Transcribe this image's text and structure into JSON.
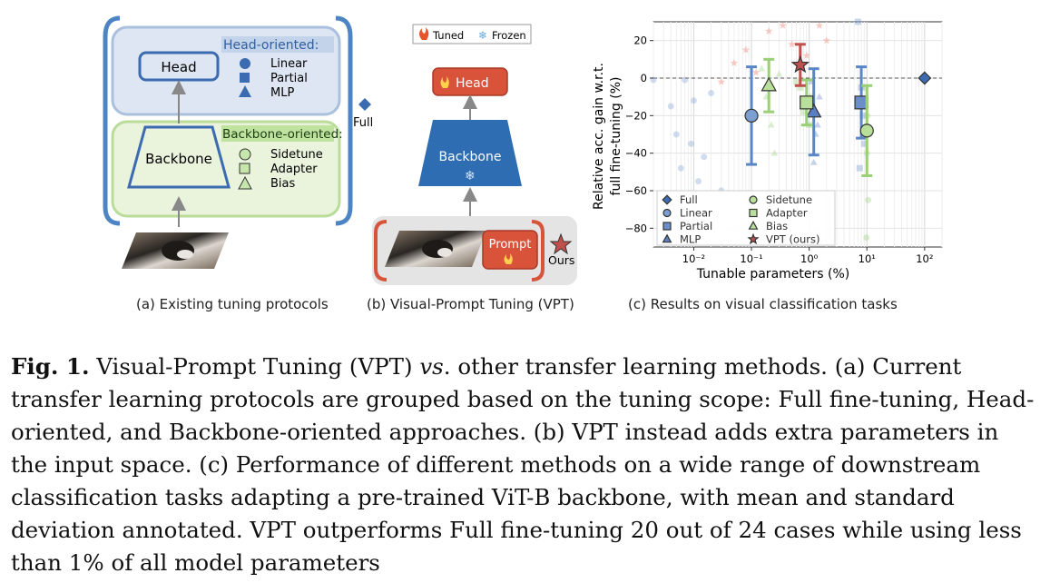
{
  "panel_a": {
    "head_label": "Head",
    "backbone_label": "Backbone",
    "head_oriented_title": "Head-oriented:",
    "head_items": [
      "Linear",
      "Partial",
      "MLP"
    ],
    "backbone_oriented_title": "Backbone-oriented:",
    "backbone_items": [
      "Sidetune",
      "Adapter",
      "Bias"
    ],
    "full_label": "Full",
    "caption": "(a)  Existing tuning protocols"
  },
  "panel_b": {
    "legend_tuned": "Tuned",
    "legend_frozen": "Frozen",
    "head_label": "Head",
    "backbone_label": "Backbone",
    "prompt_label": "Prompt",
    "ours_label": "Ours",
    "caption": "(b) Visual-Prompt Tuning (VPT)"
  },
  "panel_c": {
    "caption": "(c) Results on visual classification tasks"
  },
  "colors": {
    "tuned_red": "#d9533b",
    "frozen_blue": "#2f6db3",
    "head_oriented_bg": "#dde6f2",
    "backbone_oriented_bg": "#eaf3dc",
    "linear_blue": "#7a9fd0",
    "green": "#99d077",
    "star": "#c0504d"
  },
  "chart_data": {
    "type": "scatter",
    "xlabel": "Tunable parameters (%)",
    "ylabel": "Relative acc. gain w.r.t. full fine-tuning (%)",
    "xscale": "log",
    "xlim": [
      0.002,
      200
    ],
    "ylim": [
      -90,
      30
    ],
    "xticks": [
      "10⁻²",
      "10⁻¹",
      "10⁰",
      "10¹",
      "10²"
    ],
    "yticks": [
      "20",
      "0",
      "−20",
      "−40",
      "−60",
      "−80"
    ],
    "reference_line_y": 0,
    "legend_position": "bottom-left",
    "legend": [
      "Full",
      "Linear",
      "Partial",
      "MLP",
      "Sidetune",
      "Adapter",
      "Bias",
      "VPT (ours)"
    ],
    "series": [
      {
        "name": "Full",
        "marker": "diamond",
        "color": "#3b6bb0",
        "mean": {
          "x": 100,
          "y": 0
        }
      },
      {
        "name": "Linear",
        "marker": "circle",
        "color": "#7a9fd0",
        "mean": {
          "x": 0.1,
          "y": -20
        },
        "std": 26,
        "points": [
          {
            "x": 0.002,
            "y": -1
          },
          {
            "x": 0.004,
            "y": -15
          },
          {
            "x": 0.005,
            "y": -30
          },
          {
            "x": 0.006,
            "y": -48
          },
          {
            "x": 0.007,
            "y": -1
          },
          {
            "x": 0.009,
            "y": -35
          },
          {
            "x": 0.01,
            "y": -12
          },
          {
            "x": 0.012,
            "y": -55
          },
          {
            "x": 0.015,
            "y": -42
          },
          {
            "x": 0.02,
            "y": -8
          },
          {
            "x": 0.03,
            "y": -60
          }
        ]
      },
      {
        "name": "Partial",
        "marker": "square",
        "color": "#6a8fc8",
        "mean": {
          "x": 8,
          "y": -13
        },
        "std": 19,
        "points": [
          {
            "x": 7,
            "y": 30
          },
          {
            "x": 8,
            "y": -5
          },
          {
            "x": 8.5,
            "y": -20
          },
          {
            "x": 9,
            "y": -35
          },
          {
            "x": 7.5,
            "y": -48
          }
        ]
      },
      {
        "name": "MLP",
        "marker": "triangle",
        "color": "#5a7fc0",
        "mean": {
          "x": 1.2,
          "y": -18
        },
        "std": 23,
        "points": [
          {
            "x": 1.1,
            "y": -2
          },
          {
            "x": 1.3,
            "y": -30
          },
          {
            "x": 1.5,
            "y": -10
          },
          {
            "x": 1.2,
            "y": -45
          },
          {
            "x": 1.4,
            "y": -25
          }
        ]
      },
      {
        "name": "Sidetune",
        "marker": "circle",
        "color": "#99d077",
        "mean": {
          "x": 10,
          "y": -28
        },
        "std": 24,
        "points": [
          {
            "x": 9.5,
            "y": -5
          },
          {
            "x": 10,
            "y": -40
          },
          {
            "x": 10.5,
            "y": -65
          },
          {
            "x": 9.8,
            "y": -85
          },
          {
            "x": 10.2,
            "y": -20
          }
        ]
      },
      {
        "name": "Adapter",
        "marker": "square",
        "color": "#99d077",
        "mean": {
          "x": 0.9,
          "y": -13
        },
        "std": 12,
        "points": [
          {
            "x": 0.7,
            "y": -5
          },
          {
            "x": 0.8,
            "y": -18
          },
          {
            "x": 1.0,
            "y": -25
          },
          {
            "x": 1.1,
            "y": -10
          },
          {
            "x": 0.6,
            "y": -2
          }
        ]
      },
      {
        "name": "Bias",
        "marker": "triangle",
        "color": "#99d077",
        "mean": {
          "x": 0.2,
          "y": -4
        },
        "std": 14,
        "points": [
          {
            "x": 0.15,
            "y": 5
          },
          {
            "x": 0.18,
            "y": -10
          },
          {
            "x": 0.22,
            "y": -25
          },
          {
            "x": 0.25,
            "y": -40
          },
          {
            "x": 0.3,
            "y": 2
          }
        ]
      },
      {
        "name": "VPT (ours)",
        "marker": "star",
        "color": "#c0504d",
        "mean": {
          "x": 0.7,
          "y": 7
        },
        "std": 11,
        "points": [
          {
            "x": 0.03,
            "y": -2
          },
          {
            "x": 0.05,
            "y": 8
          },
          {
            "x": 0.08,
            "y": 15
          },
          {
            "x": 0.12,
            "y": 3
          },
          {
            "x": 0.2,
            "y": 25
          },
          {
            "x": 0.35,
            "y": 28
          },
          {
            "x": 0.5,
            "y": 18
          },
          {
            "x": 0.9,
            "y": 12
          },
          {
            "x": 1.5,
            "y": 28
          },
          {
            "x": 2.0,
            "y": 20
          }
        ]
      }
    ]
  },
  "caption": {
    "fig_label": "Fig. 1.",
    "part1": " Visual-Prompt Tuning (VPT) ",
    "vs": "vs",
    "part2": ". other transfer learning methods. (a) Current transfer learning protocols are grouped based on the tuning scope: Full fine-tuning, Head-oriented, and Backbone-oriented approaches. (b) VPT instead adds extra parameters in the input space. (c) Performance of different methods on a wide range of downstream classification tasks adapting a pre-trained ViT-B backbone, with mean and standard deviation annotated. VPT outperforms Full fine-tuning 20 out of 24 cases while using less than 1% of all model parameters"
  }
}
